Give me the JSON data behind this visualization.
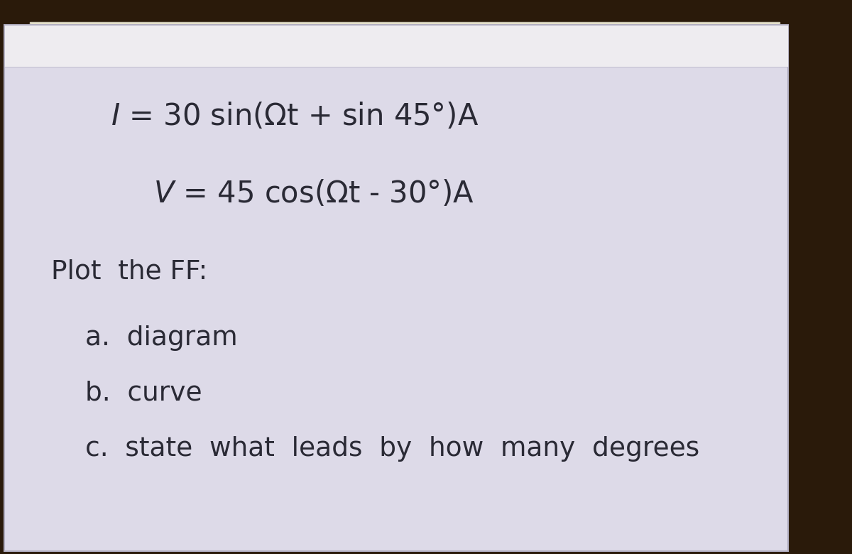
{
  "bg_color": "#2a1a0a",
  "paper_color": "#dddae8",
  "paper_color2": "#eeecf0",
  "text_color": "#2a2a35",
  "line1": "I =  30 sin(Ωt + sin 45°)A",
  "line2": "V =  45 cos(Ωt - 30°)A",
  "line3": "Plot  the FF:",
  "line4": "a.  diagram",
  "line5": "b.  curve",
  "line6": "c.  state  what  leads  by  how  many  degrees",
  "figsize": [
    12.0,
    7.8
  ],
  "dpi": 100
}
